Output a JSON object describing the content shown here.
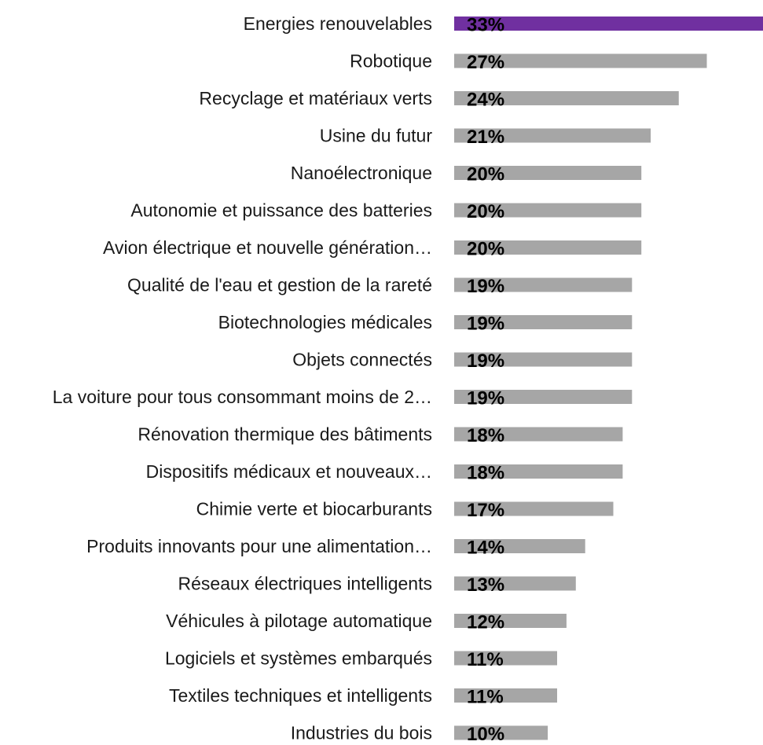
{
  "chart_data": {
    "type": "bar",
    "orientation": "horizontal",
    "title": "",
    "xlabel": "",
    "ylabel": "",
    "grid": false,
    "legend": "none",
    "value_format": "percent",
    "xlim": [
      0,
      33
    ],
    "categories": [
      "Energies renouvelables",
      "Robotique",
      "Recyclage et matériaux verts",
      "Usine du futur",
      "Nanoélectronique",
      "Autonomie et puissance des batteries",
      "Avion électrique et nouvelle génération…",
      "Qualité de l'eau et gestion de la rareté",
      "Biotechnologies médicales",
      "Objets connectés",
      "La voiture pour tous consommant moins de 2…",
      "Rénovation thermique des bâtiments",
      "Dispositifs médicaux et nouveaux…",
      "Chimie verte et biocarburants",
      "Produits innovants pour une alimentation…",
      "Réseaux électriques intelligents",
      "Véhicules à pilotage automatique",
      "Logiciels et systèmes embarqués",
      "Textiles techniques et intelligents",
      "Industries du bois"
    ],
    "values": [
      33,
      27,
      24,
      21,
      20,
      20,
      20,
      19,
      19,
      19,
      19,
      18,
      18,
      17,
      14,
      13,
      12,
      11,
      11,
      10
    ],
    "value_labels": [
      "33%",
      "27%",
      "24%",
      "21%",
      "20%",
      "20%",
      "20%",
      "19%",
      "19%",
      "19%",
      "19%",
      "18%",
      "18%",
      "17%",
      "14%",
      "13%",
      "12%",
      "11%",
      "11%",
      "10%"
    ],
    "colors": {
      "highlight": "#7030a0",
      "default": "#a6a6a6"
    },
    "highlight_index": 0
  }
}
